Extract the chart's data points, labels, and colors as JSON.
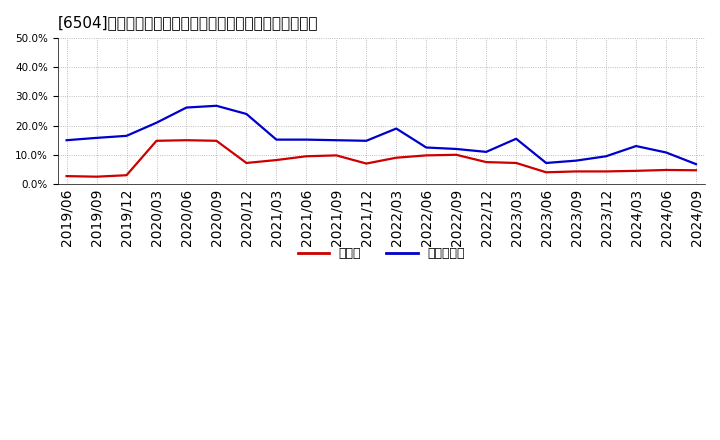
{
  "title": "[6504]　現預金、有利子負債の総資産に対する比率の推移",
  "x_labels": [
    "2019/06",
    "2019/09",
    "2019/12",
    "2020/03",
    "2020/06",
    "2020/09",
    "2020/12",
    "2021/03",
    "2021/06",
    "2021/09",
    "2021/12",
    "2022/03",
    "2022/06",
    "2022/09",
    "2022/12",
    "2023/03",
    "2023/06",
    "2023/09",
    "2023/12",
    "2024/03",
    "2024/06",
    "2024/09"
  ],
  "cash": [
    0.027,
    0.025,
    0.03,
    0.148,
    0.15,
    0.148,
    0.072,
    0.082,
    0.095,
    0.098,
    0.07,
    0.09,
    0.098,
    0.1,
    0.075,
    0.072,
    0.04,
    0.043,
    0.043,
    0.045,
    0.048,
    0.047
  ],
  "debt": [
    0.15,
    0.158,
    0.165,
    0.21,
    0.262,
    0.268,
    0.24,
    0.152,
    0.152,
    0.15,
    0.148,
    0.19,
    0.125,
    0.12,
    0.11,
    0.155,
    0.072,
    0.08,
    0.095,
    0.13,
    0.108,
    0.068
  ],
  "cash_color": "#cc0000",
  "debt_color": "#0000cc",
  "bg_color": "#ffffff",
  "plot_bg_color": "#ffffff",
  "grid_color": "#aaaaaa",
  "ylim": [
    0.0,
    0.5
  ],
  "yticks": [
    0.0,
    0.1,
    0.2,
    0.3,
    0.4,
    0.5
  ],
  "legend_cash": "現預金",
  "legend_debt": "有利子負債",
  "title_fontsize": 11,
  "tick_fontsize": 7.5,
  "legend_fontsize": 9
}
